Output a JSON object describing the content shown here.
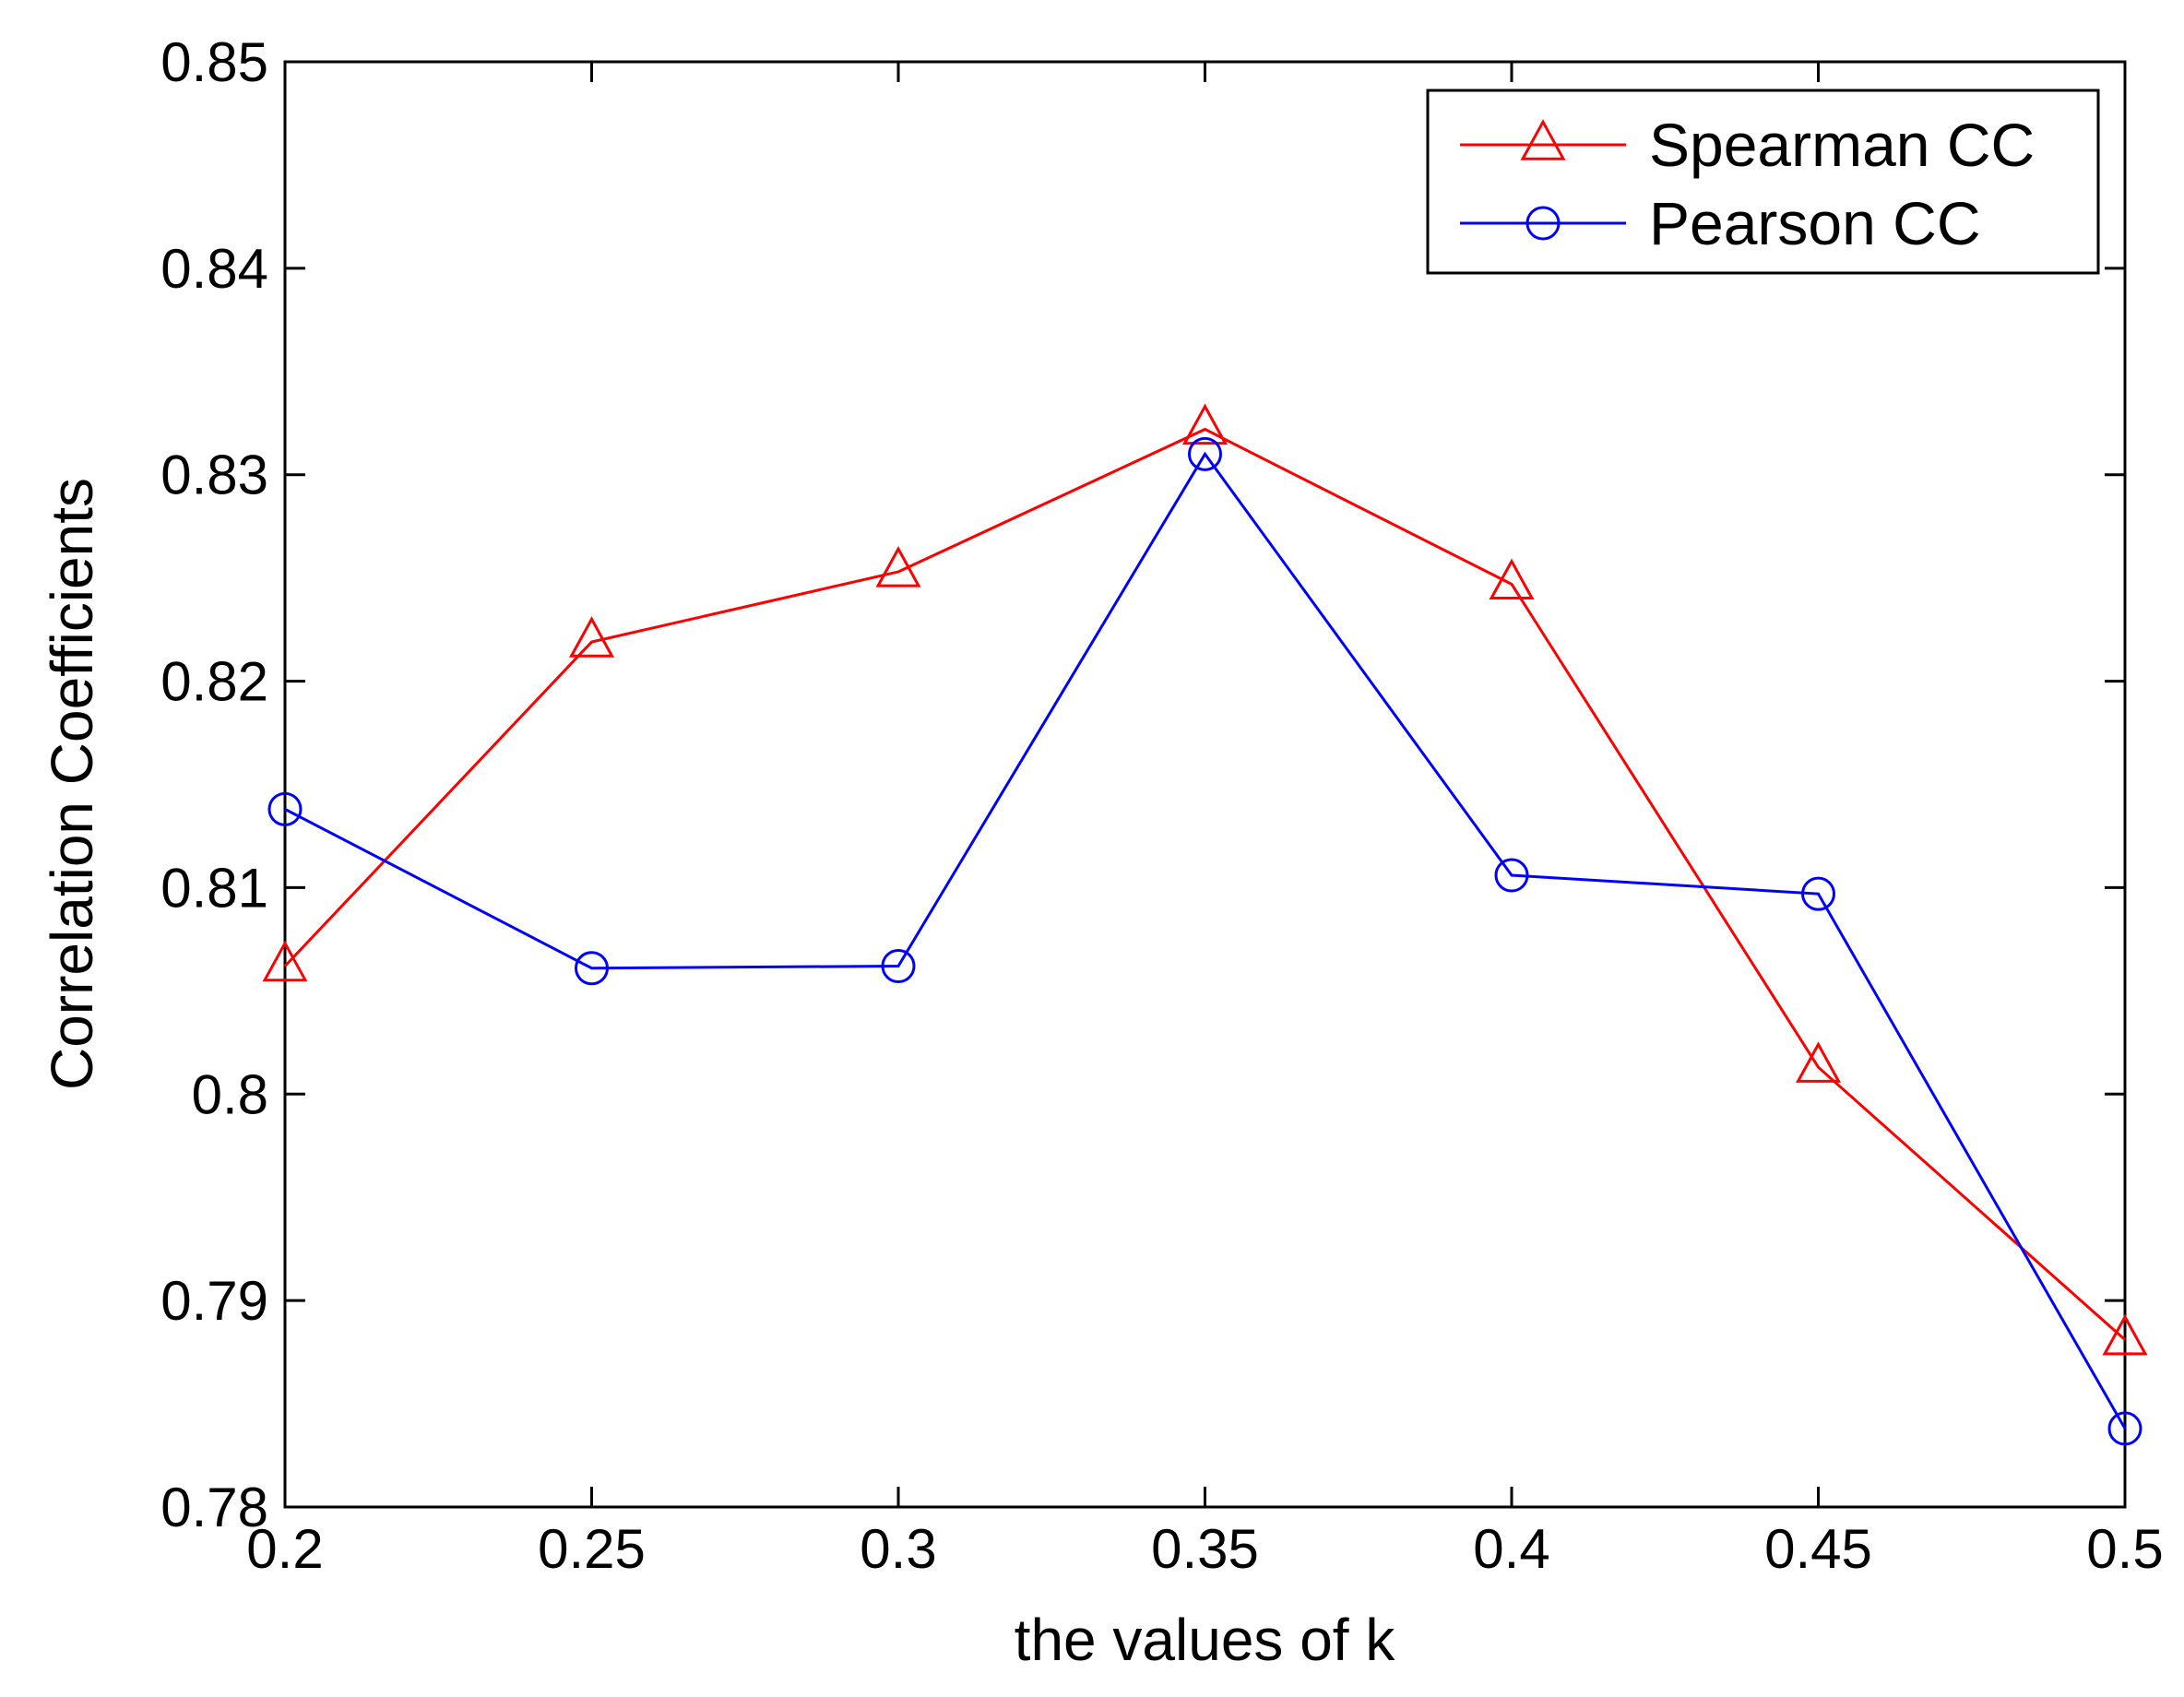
{
  "chart_data": {
    "type": "line",
    "title": "",
    "xlabel": "the values of k",
    "ylabel": "Correlation Coefficients",
    "x": [
      0.2,
      0.25,
      0.3,
      0.35,
      0.4,
      0.45,
      0.5
    ],
    "xlim": [
      0.2,
      0.5
    ],
    "ylim": [
      0.78,
      0.85
    ],
    "xticks": [
      "0.2",
      "0.25",
      "0.3",
      "0.35",
      "0.4",
      "0.45",
      "0.5"
    ],
    "yticks": [
      "0.78",
      "0.79",
      "0.8",
      "0.81",
      "0.82",
      "0.83",
      "0.84",
      "0.85"
    ],
    "grid": false,
    "legend_position": "top-right",
    "series": [
      {
        "name": "Spearman CC",
        "color": "#ff0000",
        "marker": "triangle",
        "values": [
          0.8062,
          0.8219,
          0.8253,
          0.8322,
          0.8247,
          0.8013,
          0.7881
        ]
      },
      {
        "name": "Pearson CC",
        "color": "#0000ff",
        "marker": "circle",
        "values": [
          0.8138,
          0.8061,
          0.8062,
          0.831,
          0.8106,
          0.8097,
          0.7838
        ]
      }
    ]
  }
}
